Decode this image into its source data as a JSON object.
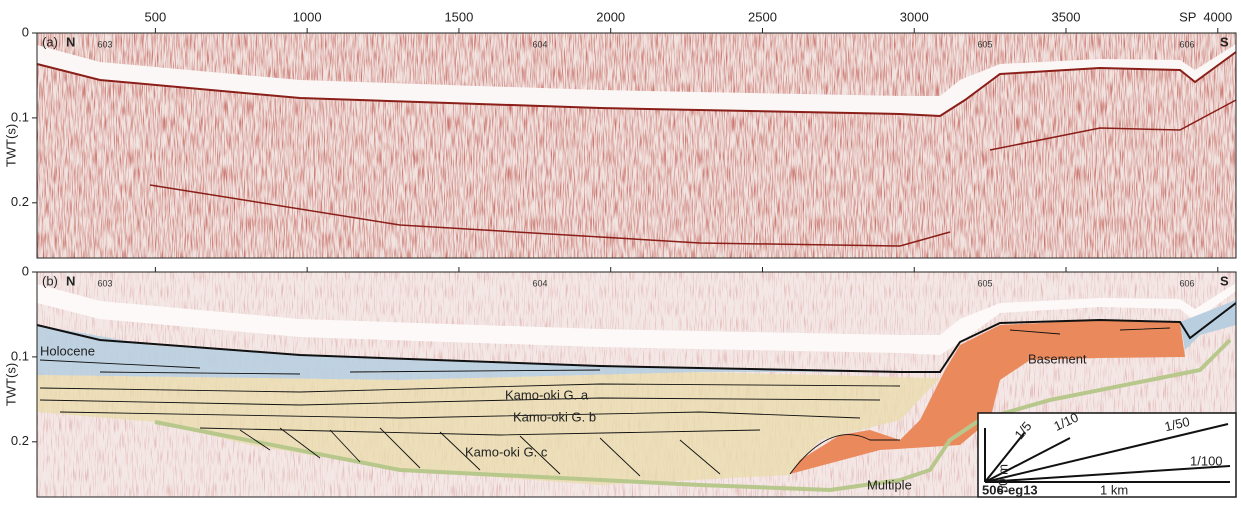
{
  "sp_axis": {
    "label": "SP",
    "ticks": [
      500,
      1000,
      1500,
      2000,
      2500,
      3000,
      3500,
      4000
    ],
    "xlim": [
      110,
      4060
    ]
  },
  "panels": [
    {
      "label": "(a)",
      "north": "N",
      "south": "S",
      "shotpoints": [
        "603",
        "604",
        "605",
        "606"
      ],
      "y_axis": {
        "label": "TWT(s)",
        "ticks": [
          0,
          0.1,
          0.2
        ],
        "ylim": [
          0,
          0.265
        ]
      }
    },
    {
      "label": "(b)",
      "north": "N",
      "south": "S",
      "shotpoints": [
        "603",
        "604",
        "605",
        "606"
      ],
      "y_axis": {
        "label": "TWT(s)",
        "ticks": [
          0,
          0.1,
          0.2
        ],
        "ylim": [
          0,
          0.265
        ]
      },
      "units": {
        "holocene": "Holocene",
        "kamo_a": "Kamo-oki G. a",
        "kamo_b": "Kamo-oki G. b",
        "kamo_c": "Kamo-oki G. c",
        "basement": "Basement",
        "multiple": "Multiple"
      }
    }
  ],
  "scale_box": {
    "slopes": [
      "1/5",
      "1/10",
      "1/50",
      "1/100"
    ],
    "vertical": "50 m",
    "horizontal": "1 km",
    "line_id": "506-eg13"
  }
}
